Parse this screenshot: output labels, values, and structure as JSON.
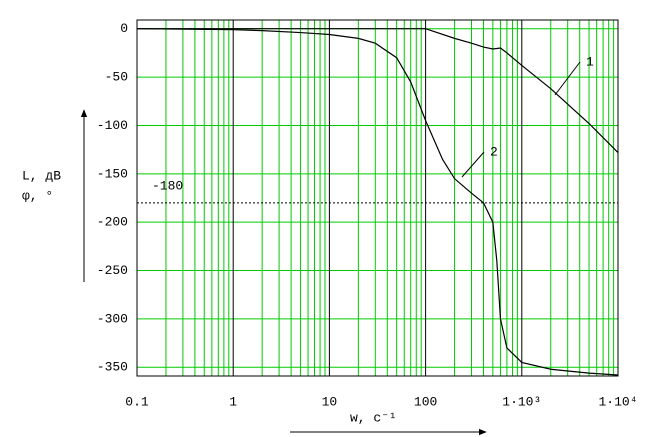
{
  "chart_data": {
    "type": "line",
    "log_x": true,
    "y_label_1": "L, дВ",
    "y_label_2": "φ, °",
    "x_label": "w, c⁻¹",
    "xlim": [
      0.1,
      10000
    ],
    "ylim": [
      -359,
      9
    ],
    "xticks": [
      0.1,
      1,
      10,
      100,
      {
        "value": 1000,
        "label": "1·10³"
      },
      {
        "value": 10000,
        "label": "1·10⁴"
      }
    ],
    "yticks": [
      0,
      -50,
      -100,
      -150,
      -200,
      -250,
      -300,
      -350
    ],
    "grid": true,
    "grid_color": "#00cc00",
    "reference_line": -180,
    "series": [
      {
        "name": "1",
        "color": "#000000",
        "x": [
          0.1,
          1,
          10,
          100,
          200,
          300,
          400,
          500,
          600,
          700,
          1000,
          2000,
          3000,
          5000,
          10000
        ],
        "values": [
          0,
          0,
          0,
          0,
          -10,
          -15,
          -19,
          -21,
          -20,
          -25,
          -38,
          -62,
          -78,
          -98,
          -128
        ]
      },
      {
        "name": "2",
        "color": "#000000",
        "x": [
          0.1,
          1,
          2,
          5,
          10,
          20,
          30,
          50,
          70,
          100,
          150,
          200,
          300,
          400,
          500,
          550,
          600,
          700,
          1000,
          2000,
          5000,
          10000
        ],
        "values": [
          0,
          -1,
          -2,
          -4,
          -6,
          -10,
          -15,
          -30,
          -55,
          -95,
          -135,
          -155,
          -170,
          -180,
          -200,
          -240,
          -300,
          -330,
          -345,
          -352,
          -356,
          -358
        ]
      }
    ]
  }
}
